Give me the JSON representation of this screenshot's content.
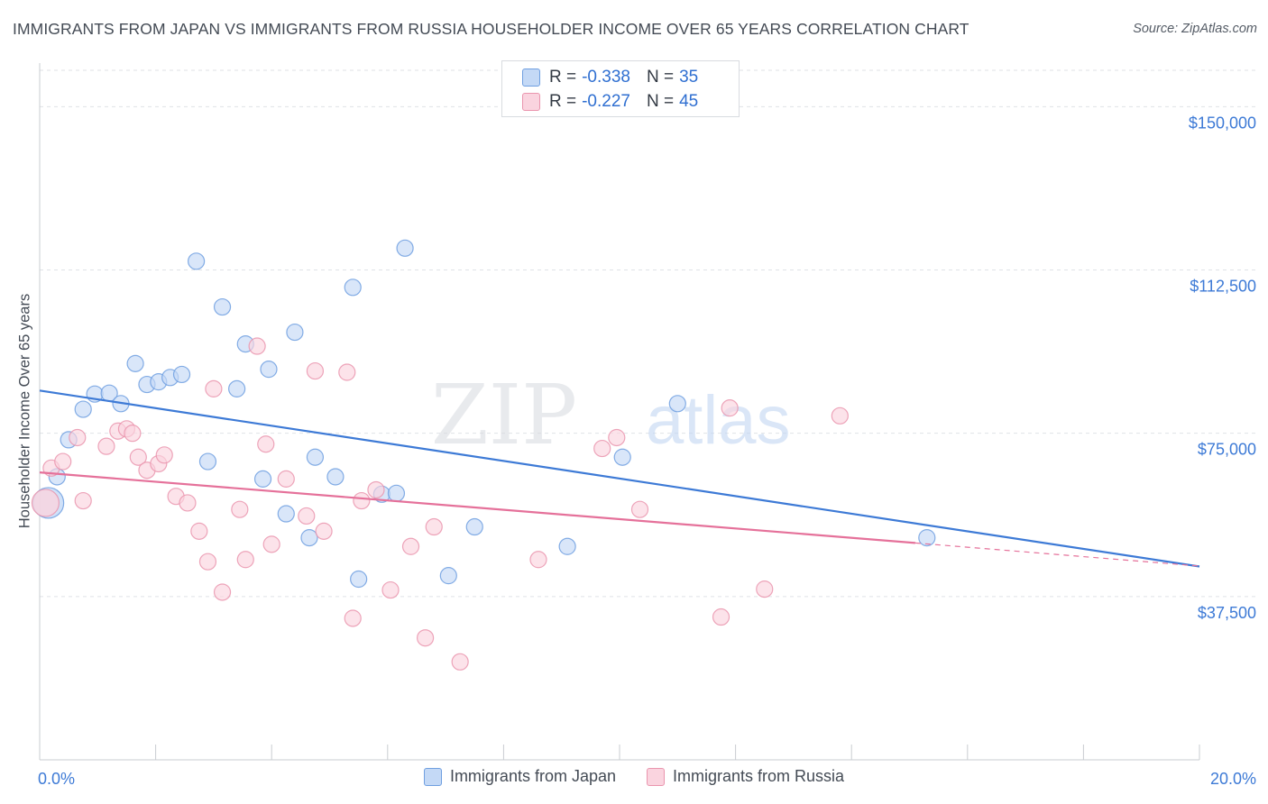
{
  "title": "IMMIGRANTS FROM JAPAN VS IMMIGRANTS FROM RUSSIA HOUSEHOLDER INCOME OVER 65 YEARS CORRELATION CHART",
  "source": "Source: ZipAtlas.com",
  "watermark": {
    "zip": "ZIP",
    "atlas": "atlas"
  },
  "colors": {
    "japan": "#3d7ad6",
    "japan_fill": "#c4d9f6",
    "japan_stroke": "#6f9fe0",
    "russia": "#e5719a",
    "russia_fill": "#fad4df",
    "russia_stroke": "#ea95ae",
    "tick_label": "#3d7ad6",
    "grid": "#dfe2e6"
  },
  "stats": {
    "japan": {
      "r_label": "R =",
      "r": "-0.338",
      "n_label": "N =",
      "n": "35"
    },
    "russia": {
      "r_label": "R =",
      "r": "-0.227",
      "n_label": "N =",
      "n": "45"
    }
  },
  "chart_data": {
    "type": "scatter",
    "title": "IMMIGRANTS FROM JAPAN VS IMMIGRANTS FROM RUSSIA HOUSEHOLDER INCOME OVER 65 YEARS CORRELATION CHART",
    "xlabel": "",
    "ylabel": "Householder Income Over 65 years",
    "xlim": [
      0,
      20
    ],
    "ylim": [
      0,
      160000
    ],
    "x_tick_labels": [
      "0.0%",
      "20.0%"
    ],
    "y_ticks": [
      37500,
      75000,
      112500,
      150000
    ],
    "y_tick_labels": [
      "$37,500",
      "$75,000",
      "$112,500",
      "$150,000"
    ],
    "grid": true,
    "legend_position": "bottom",
    "series": [
      {
        "name": "Immigrants from Japan",
        "color": "#3d7ad6",
        "points": [
          [
            0.3,
            65000
          ],
          [
            0.5,
            73500
          ],
          [
            0.75,
            80500
          ],
          [
            0.95,
            84000
          ],
          [
            1.2,
            84200
          ],
          [
            1.4,
            81800
          ],
          [
            1.65,
            91000
          ],
          [
            1.85,
            86200
          ],
          [
            2.05,
            86800
          ],
          [
            2.25,
            87800
          ],
          [
            2.45,
            88500
          ],
          [
            2.7,
            114500
          ],
          [
            2.9,
            68500
          ],
          [
            3.15,
            104000
          ],
          [
            3.4,
            85200
          ],
          [
            3.55,
            95500
          ],
          [
            3.85,
            64500
          ],
          [
            3.95,
            89700
          ],
          [
            4.25,
            56500
          ],
          [
            4.4,
            98200
          ],
          [
            4.65,
            51000
          ],
          [
            4.75,
            69500
          ],
          [
            5.1,
            65000
          ],
          [
            5.4,
            108500
          ],
          [
            5.5,
            41500
          ],
          [
            5.9,
            61000
          ],
          [
            6.15,
            61200
          ],
          [
            6.3,
            117500
          ],
          [
            7.05,
            42300
          ],
          [
            7.5,
            53500
          ],
          [
            9.1,
            49000
          ],
          [
            10.05,
            69500
          ],
          [
            11.0,
            81800
          ],
          [
            15.3,
            51000
          ],
          [
            0.15,
            59000
          ]
        ],
        "trend": {
          "x": [
            0,
            20
          ],
          "y": [
            84800,
            44400
          ]
        }
      },
      {
        "name": "Immigrants from Russia",
        "color": "#e5719a",
        "points": [
          [
            0.2,
            67000
          ],
          [
            0.4,
            68500
          ],
          [
            0.65,
            74000
          ],
          [
            0.75,
            59500
          ],
          [
            1.15,
            72000
          ],
          [
            1.35,
            75500
          ],
          [
            1.5,
            76000
          ],
          [
            1.6,
            75000
          ],
          [
            1.7,
            69500
          ],
          [
            1.85,
            66500
          ],
          [
            2.05,
            68000
          ],
          [
            2.15,
            70000
          ],
          [
            2.35,
            60500
          ],
          [
            2.55,
            59000
          ],
          [
            2.75,
            52500
          ],
          [
            2.9,
            45500
          ],
          [
            3.0,
            85200
          ],
          [
            3.15,
            38500
          ],
          [
            3.45,
            57500
          ],
          [
            3.55,
            46000
          ],
          [
            3.75,
            95000
          ],
          [
            3.9,
            72500
          ],
          [
            4.0,
            49500
          ],
          [
            4.25,
            64500
          ],
          [
            4.6,
            56000
          ],
          [
            4.75,
            89300
          ],
          [
            4.9,
            52500
          ],
          [
            5.3,
            89000
          ],
          [
            5.4,
            32500
          ],
          [
            5.55,
            59500
          ],
          [
            5.8,
            62000
          ],
          [
            6.05,
            39000
          ],
          [
            6.4,
            49000
          ],
          [
            6.65,
            28000
          ],
          [
            6.8,
            53500
          ],
          [
            7.25,
            22500
          ],
          [
            8.6,
            46000
          ],
          [
            9.7,
            71500
          ],
          [
            9.95,
            74000
          ],
          [
            10.35,
            57500
          ],
          [
            11.75,
            32800
          ],
          [
            11.9,
            80800
          ],
          [
            12.5,
            39200
          ],
          [
            13.8,
            79000
          ],
          [
            0.1,
            59000
          ]
        ],
        "trend": {
          "x": [
            0,
            15.1
          ],
          "y": [
            66000,
            49800
          ]
        },
        "trend_dashed": {
          "x": [
            15.1,
            20
          ],
          "y": [
            49800,
            44500
          ]
        }
      }
    ]
  }
}
